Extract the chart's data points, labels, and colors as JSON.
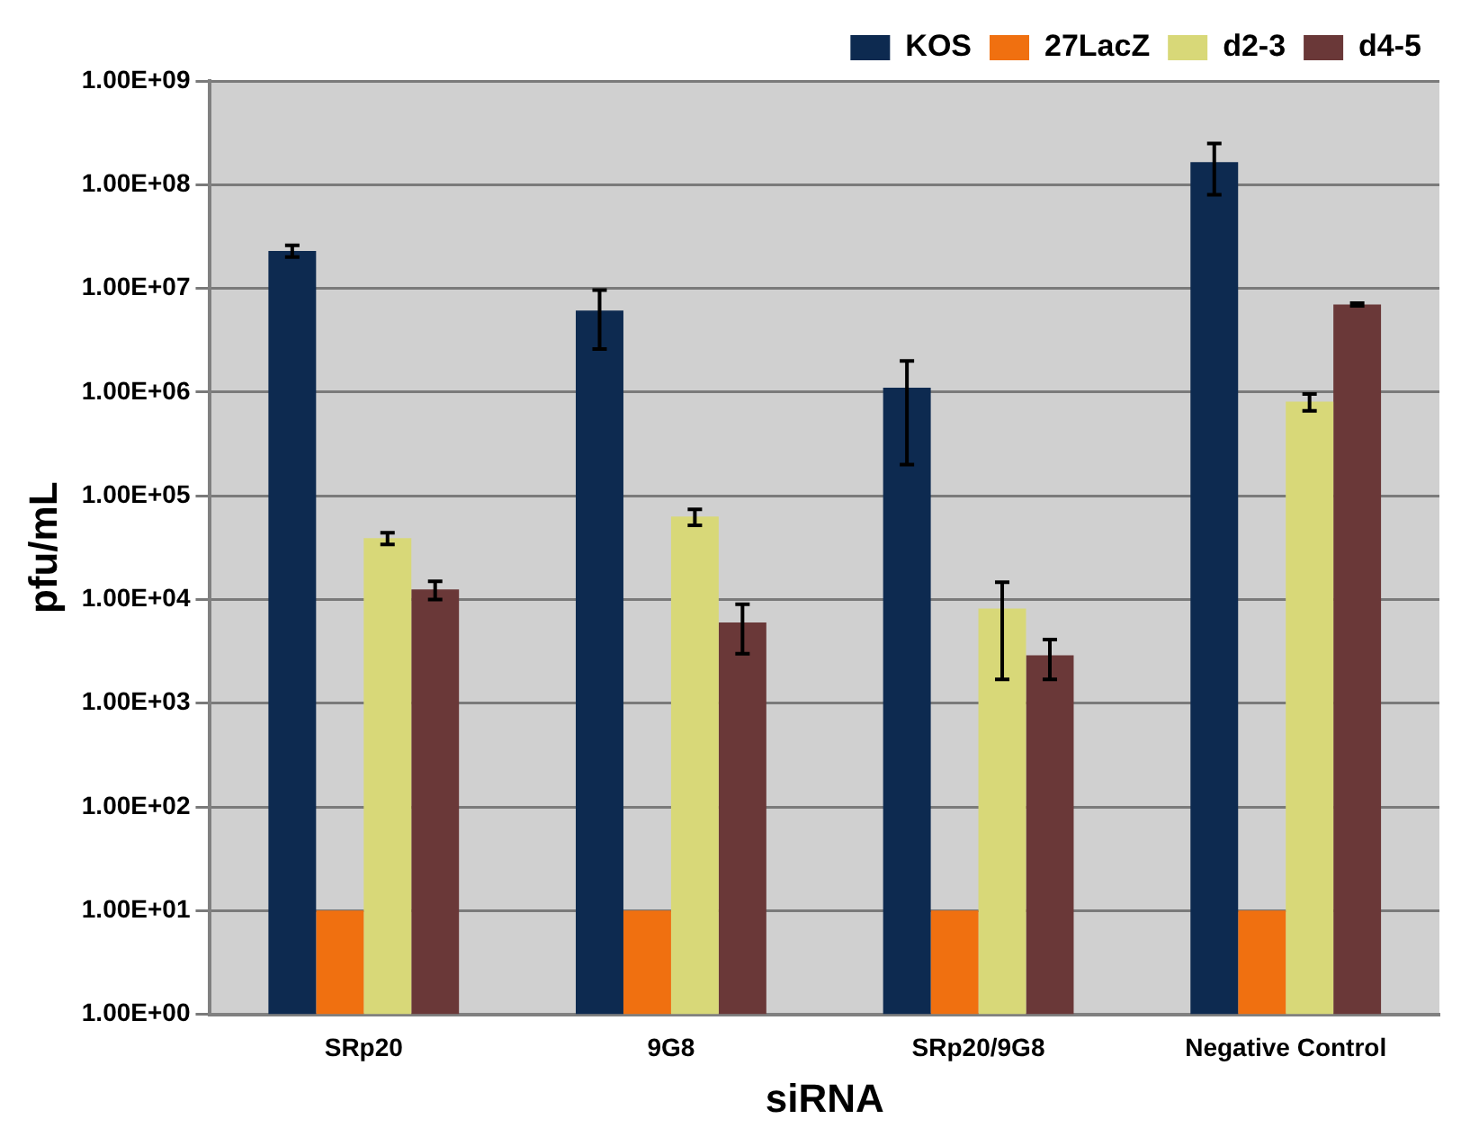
{
  "chart_data": {
    "type": "bar",
    "xlabel": "siRNA",
    "ylabel": "pfu/mL",
    "categories": [
      "SRp20",
      "9G8",
      "SRp20/9G8",
      "Negative Control"
    ],
    "series": [
      {
        "name": "KOS",
        "color": "#0d2a50",
        "values": [
          23000000,
          6100000,
          1100000,
          165000000
        ],
        "errors": [
          3000000,
          3500000,
          900000,
          85000000
        ]
      },
      {
        "name": "27LacZ",
        "color": "#f07010",
        "values": [
          10,
          10,
          10,
          10
        ]
      },
      {
        "name": "d2-3",
        "color": "#d8d878",
        "values": [
          39000,
          63000,
          8200,
          810000
        ],
        "errors": [
          5000,
          11000,
          6500,
          150000
        ]
      },
      {
        "name": "d4-5",
        "color": "#6a3838",
        "values": [
          12500,
          6000,
          2900,
          7000000
        ],
        "errors": [
          2500,
          3000,
          1200,
          200000
        ]
      }
    ],
    "log": "y",
    "ylim": [
      1,
      1000000000
    ],
    "yticks": [
      {
        "value": 1,
        "label": "1.00E+00"
      },
      {
        "value": 10,
        "label": "1.00E+01"
      },
      {
        "value": 100,
        "label": "1.00E+02"
      },
      {
        "value": 1000,
        "label": "1.00E+03"
      },
      {
        "value": 10000,
        "label": "1.00E+04"
      },
      {
        "value": 100000,
        "label": "1.00E+05"
      },
      {
        "value": 1000000,
        "label": "1.00E+06"
      },
      {
        "value": 10000000,
        "label": "1.00E+07"
      },
      {
        "value": 100000000,
        "label": "1.00E+08"
      },
      {
        "value": 1000000000,
        "label": "1.00E+09"
      }
    ],
    "grid": "y",
    "legend": "top right"
  }
}
